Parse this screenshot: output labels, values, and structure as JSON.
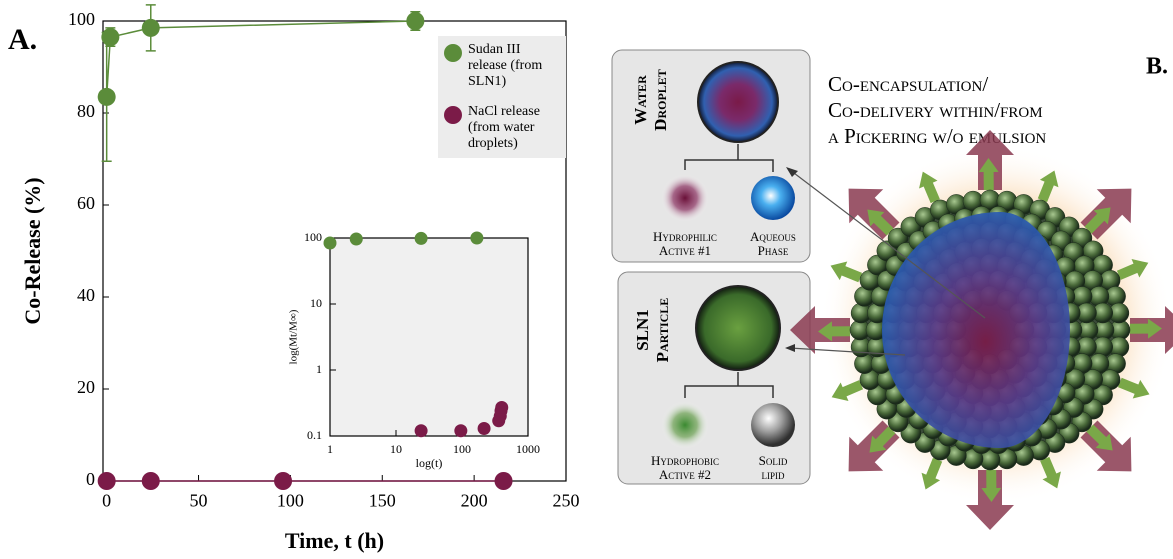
{
  "panels": {
    "a": "A.",
    "b": "B."
  },
  "chart_data": [
    {
      "type": "scatter",
      "x_label": "Time, t (h)",
      "y_label": "Co-Release (%)",
      "xlim": [
        -2,
        250
      ],
      "ylim": [
        0,
        100
      ],
      "xticks": [
        0,
        50,
        100,
        150,
        200,
        250
      ],
      "yticks": [
        0,
        20,
        40,
        60,
        80,
        100
      ],
      "lines": true,
      "legend": "upper right",
      "series": [
        {
          "name": "Sudan III release (from SLN1)",
          "color": "#5b8c3a",
          "x": [
            0,
            2,
            24,
            168
          ],
          "values": [
            83.5,
            96.5,
            98.5,
            100
          ],
          "errors": [
            14,
            2,
            5,
            2
          ]
        },
        {
          "name": "NaCl release (from water droplets)",
          "color": "#7b1b48",
          "x": [
            0,
            24,
            96,
            216
          ],
          "values": [
            0,
            0,
            0,
            0
          ]
        }
      ]
    },
    {
      "type": "scatter",
      "x_label": "log(t)",
      "y_label": "log(Mt/M∞)",
      "log_x": true,
      "log_y": true,
      "xlim": [
        1,
        1000
      ],
      "ylim": [
        0.1,
        100
      ],
      "xticks": [
        1,
        10,
        100,
        1000
      ],
      "yticks": [
        0.1,
        1,
        10,
        100
      ],
      "background": "#f0f0f0",
      "series": [
        {
          "color": "#5b8c3a",
          "x": [
            1,
            2.5,
            24,
            168
          ],
          "values": [
            84,
            96.5,
            98.5,
            100
          ]
        },
        {
          "color": "#7b1b48",
          "x": [
            24,
            96,
            216,
            360,
            380,
            390,
            400
          ],
          "values": [
            0.12,
            0.12,
            0.13,
            0.17,
            0.2,
            0.24,
            0.27
          ]
        }
      ]
    }
  ],
  "diagram": {
    "title": [
      "Co-encapsulation/",
      "Co-delivery within/from",
      "a Pickering w/o emulsion"
    ],
    "water_droplet": [
      "Water",
      "Droplet"
    ],
    "hydrophilic": [
      "Hydrophilic",
      "Active #1"
    ],
    "aqueous": [
      "Aqueous",
      "Phase"
    ],
    "sln1": [
      "SLN1",
      "Particle"
    ],
    "hydrophobic": [
      "Hydrophobic",
      "Active #2"
    ],
    "solid_lipid": [
      "Solid",
      "lipid"
    ]
  }
}
